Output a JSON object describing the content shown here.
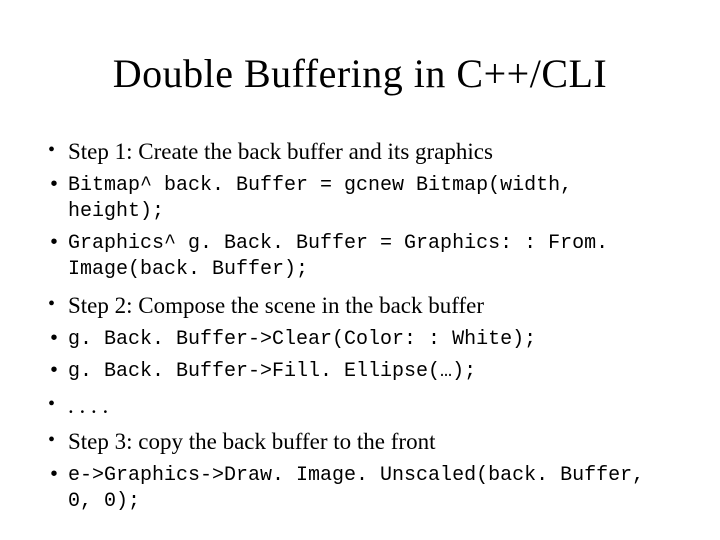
{
  "slide": {
    "title": "Double Buffering in C++/CLI",
    "bullets": {
      "step1": "Step 1: Create the back buffer and its graphics",
      "code1a": "Bitmap^ back. Buffer = gcnew Bitmap(width, height);",
      "code1b": "Graphics^ g. Back. Buffer = Graphics: : From. Image(back. Buffer);",
      "step2": "Step 2: Compose the scene in the back buffer",
      "code2a": "g. Back. Buffer->Clear(Color: : White);",
      "code2b": "g. Back. Buffer->Fill. Ellipse(…);",
      "dots": ". . . .",
      "step3": "Step 3: copy the back buffer to the front",
      "code3": "e->Graphics->Draw. Image. Unscaled(back. Buffer, 0, 0);"
    }
  },
  "style": {
    "background_color": "#ffffff",
    "text_color": "#000000",
    "title_fontsize": 40,
    "body_fontsize": 23,
    "code_fontsize": 20,
    "body_font": "Times New Roman",
    "code_font": "Courier New"
  }
}
